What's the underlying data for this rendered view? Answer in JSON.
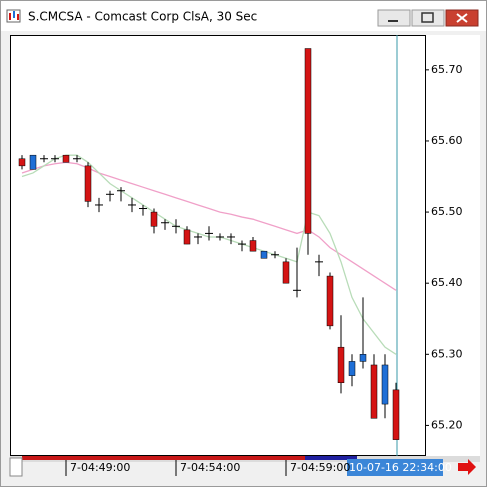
{
  "chart_data": {
    "type": "candlestick",
    "title": "S.CMCSA - Comcast Corp ClsA, 30 Sec",
    "categories": [
      null,
      null,
      null,
      null,
      "7-04:49:00",
      null,
      null,
      null,
      null,
      null,
      null,
      null,
      null,
      null,
      "7-04:54:00",
      null,
      null,
      null,
      null,
      null,
      null,
      null,
      null,
      null,
      "7-04:59:00",
      null,
      null,
      null,
      null,
      null,
      null,
      null,
      null,
      null,
      null
    ],
    "cursor_label": "10-07-16 22:34:00",
    "up_color": "#1f6fd6",
    "down_color": "#d41414",
    "open": [
      65.575,
      65.56,
      65.575,
      65.575,
      65.58,
      65.575,
      65.565,
      65.51,
      65.525,
      65.53,
      65.51,
      65.505,
      65.5,
      65.485,
      65.48,
      65.475,
      65.465,
      65.47,
      65.465,
      65.465,
      65.455,
      65.46,
      65.435,
      65.44,
      65.43,
      65.39,
      65.73,
      65.43,
      65.41,
      65.31,
      65.27,
      65.29,
      65.285,
      65.23,
      65.25
    ],
    "high": [
      65.58,
      65.58,
      65.58,
      65.58,
      65.58,
      65.58,
      65.57,
      65.52,
      65.53,
      65.535,
      65.52,
      65.51,
      65.505,
      65.49,
      65.49,
      65.48,
      65.47,
      65.48,
      65.47,
      65.47,
      65.46,
      65.465,
      65.445,
      65.445,
      65.435,
      65.45,
      65.73,
      65.44,
      65.415,
      65.355,
      65.3,
      65.38,
      65.3,
      65.3,
      65.26
    ],
    "low": [
      65.56,
      65.56,
      65.57,
      65.57,
      65.57,
      65.57,
      65.507,
      65.5,
      65.515,
      65.515,
      65.5,
      65.495,
      65.47,
      65.475,
      65.47,
      65.455,
      65.455,
      65.46,
      65.46,
      65.455,
      65.445,
      65.445,
      65.435,
      65.435,
      65.4,
      65.38,
      65.44,
      65.41,
      65.335,
      65.245,
      65.255,
      65.28,
      65.21,
      65.21,
      65.18
    ],
    "close": [
      65.565,
      65.58,
      65.575,
      65.575,
      65.57,
      65.575,
      65.515,
      65.51,
      65.525,
      65.53,
      65.51,
      65.505,
      65.48,
      65.485,
      65.48,
      65.455,
      65.465,
      65.47,
      65.465,
      65.465,
      65.455,
      65.445,
      65.445,
      65.44,
      65.4,
      65.39,
      65.47,
      65.43,
      65.34,
      65.26,
      65.29,
      65.3,
      65.21,
      65.285,
      65.18
    ],
    "series": [
      {
        "color": "#f0a0c8",
        "values": [
          65.555,
          65.56,
          65.565,
          65.568,
          65.57,
          65.568,
          65.562,
          65.555,
          65.55,
          65.545,
          65.54,
          65.535,
          65.53,
          65.525,
          65.52,
          65.515,
          65.51,
          65.505,
          65.5,
          65.497,
          65.493,
          65.49,
          65.485,
          65.48,
          65.475,
          65.47,
          65.475,
          65.465,
          65.45,
          65.44,
          65.43,
          65.42,
          65.41,
          65.4,
          65.39
        ]
      },
      {
        "color": "#b8dcb8",
        "values": [
          65.55,
          65.555,
          65.565,
          65.575,
          65.58,
          65.58,
          65.57,
          65.555,
          65.54,
          65.53,
          65.52,
          65.51,
          65.5,
          65.49,
          65.48,
          65.475,
          65.47,
          65.465,
          65.465,
          65.46,
          65.455,
          65.45,
          65.445,
          65.44,
          65.435,
          65.43,
          65.5,
          65.495,
          65.47,
          65.43,
          65.38,
          65.35,
          65.33,
          65.31,
          65.3
        ]
      }
    ],
    "ylim": [
      65.157,
      65.749
    ],
    "yticks": [
      {
        "value": 65.2,
        "label": "65.20"
      },
      {
        "value": 65.3,
        "label": "65.30"
      },
      {
        "value": 65.4,
        "label": "65.40"
      },
      {
        "value": 65.5,
        "label": "65.50"
      },
      {
        "value": 65.6,
        "label": "65.60"
      },
      {
        "value": 65.7,
        "label": "65.70"
      }
    ]
  }
}
